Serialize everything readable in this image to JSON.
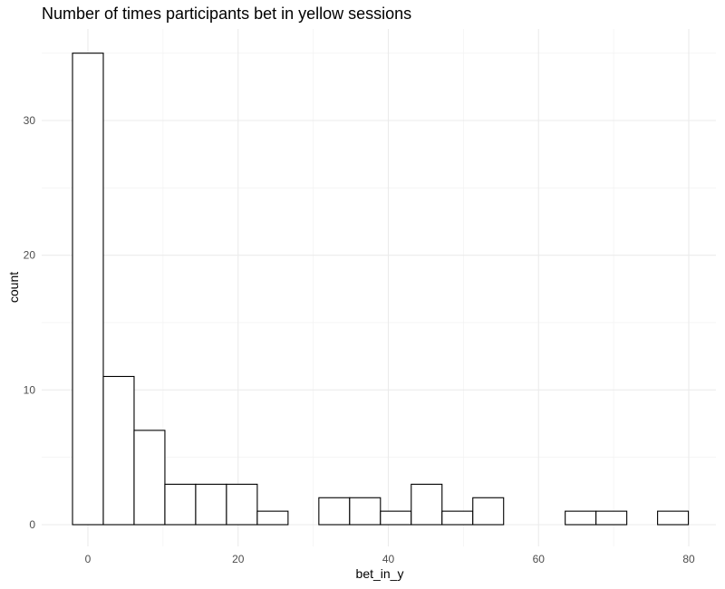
{
  "chart_data": {
    "type": "bar",
    "title": "Number of times participants bet in yellow sessions",
    "xlabel": "bet_in_y",
    "ylabel": "count",
    "xlim": [
      -4.5,
      84
    ],
    "ylim": [
      0,
      36.7
    ],
    "x_ticks": [
      0,
      20,
      40,
      60,
      80
    ],
    "y_ticks": [
      0,
      10,
      20,
      30
    ],
    "grid": true,
    "bin_width": 4.1,
    "bins": [
      {
        "center": 0,
        "count": 35
      },
      {
        "center": 4.1,
        "count": 11
      },
      {
        "center": 8.2,
        "count": 7
      },
      {
        "center": 12.3,
        "count": 3
      },
      {
        "center": 16.4,
        "count": 3
      },
      {
        "center": 20.5,
        "count": 3
      },
      {
        "center": 24.6,
        "count": 1
      },
      {
        "center": 28.7,
        "count": 0
      },
      {
        "center": 32.8,
        "count": 2
      },
      {
        "center": 36.9,
        "count": 2
      },
      {
        "center": 41.0,
        "count": 1
      },
      {
        "center": 45.1,
        "count": 3
      },
      {
        "center": 49.2,
        "count": 1
      },
      {
        "center": 53.3,
        "count": 2
      },
      {
        "center": 57.4,
        "count": 0
      },
      {
        "center": 61.5,
        "count": 0
      },
      {
        "center": 65.6,
        "count": 1
      },
      {
        "center": 69.7,
        "count": 1
      },
      {
        "center": 73.8,
        "count": 0
      },
      {
        "center": 77.9,
        "count": 1
      }
    ]
  }
}
